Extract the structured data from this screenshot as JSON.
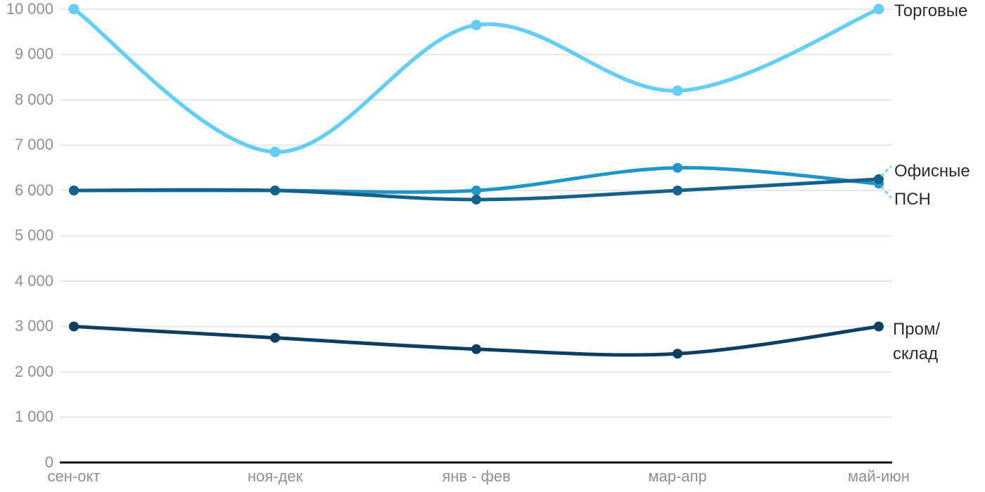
{
  "chart_data": {
    "type": "line",
    "title": "",
    "xlabel": "",
    "ylabel": "",
    "categories": [
      "сен-окт",
      "ноя-дек",
      "янв - фев",
      "мар-апр",
      "май-июн"
    ],
    "series": [
      {
        "name": "Торговые",
        "color": "#66CEF6",
        "values": [
          10000,
          6850,
          9650,
          8200,
          10000
        ]
      },
      {
        "name": "Офисные",
        "color": "#2095C6",
        "values": [
          6000,
          6000,
          6000,
          6500,
          6150
        ]
      },
      {
        "name": "ПСН",
        "color": "#15618C",
        "values": [
          6000,
          6000,
          5800,
          6000,
          6250
        ]
      },
      {
        "name": "Пром/склад",
        "color": "#0E3F61",
        "values": [
          3000,
          2750,
          2500,
          2400,
          3000
        ]
      }
    ],
    "ylim": [
      0,
      10000
    ],
    "ytick_step": 1000,
    "ytick_labels": [
      "0",
      "1 000",
      "2 000",
      "3 000",
      "4 000",
      "5 000",
      "6 000",
      "7 000",
      "8 000",
      "9 000",
      "10 000"
    ],
    "grid": "horizontal-only",
    "grid_color": "#E7E7E7",
    "axis_line_color": "#111111",
    "tick_label_color": "#8F8F8F",
    "series_label_color": "#2B2B2B",
    "connector_color": "#6CC9F0",
    "legend_position": "end-of-line labels at right",
    "curve": "spline"
  },
  "end_labels": {
    "torgovye": "Торговые",
    "ofisnye": "Офисные",
    "psn": "ПСН",
    "prom_line1": "Пром/",
    "prom_line2": "склад"
  }
}
